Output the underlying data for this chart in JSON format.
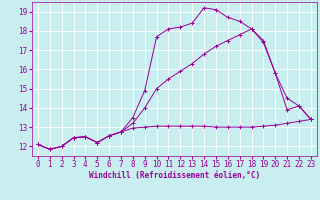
{
  "xlabel": "Windchill (Refroidissement éolien,°C)",
  "bg_color": "#c8eef0",
  "grid_color": "#ffffff",
  "line_color": "#990099",
  "xlim": [
    -0.5,
    23.5
  ],
  "ylim": [
    11.5,
    19.5
  ],
  "xticks": [
    0,
    1,
    2,
    3,
    4,
    5,
    6,
    7,
    8,
    9,
    10,
    11,
    12,
    13,
    14,
    15,
    16,
    17,
    18,
    19,
    20,
    21,
    22,
    23
  ],
  "yticks": [
    12,
    13,
    14,
    15,
    16,
    17,
    18,
    19
  ],
  "line1_x": [
    0,
    1,
    2,
    3,
    4,
    5,
    6,
    7,
    8,
    9,
    10,
    11,
    12,
    13,
    14,
    15,
    16,
    17,
    18,
    19,
    20,
    21,
    22,
    23
  ],
  "line1_y": [
    12.1,
    11.85,
    12.0,
    12.45,
    12.5,
    12.2,
    12.55,
    12.75,
    12.95,
    13.0,
    13.05,
    13.05,
    13.05,
    13.05,
    13.05,
    13.0,
    13.0,
    13.0,
    13.0,
    13.05,
    13.1,
    13.2,
    13.3,
    13.4
  ],
  "line2_x": [
    0,
    1,
    2,
    3,
    4,
    5,
    6,
    7,
    8,
    9,
    10,
    11,
    12,
    13,
    14,
    15,
    16,
    17,
    18,
    19,
    20,
    21,
    22,
    23
  ],
  "line2_y": [
    12.1,
    11.85,
    12.0,
    12.45,
    12.5,
    12.2,
    12.55,
    12.75,
    13.5,
    14.9,
    17.7,
    18.1,
    18.2,
    18.4,
    19.2,
    19.1,
    18.7,
    18.5,
    18.1,
    17.5,
    15.8,
    13.9,
    14.1,
    13.4
  ],
  "line3_x": [
    0,
    1,
    2,
    3,
    4,
    5,
    6,
    7,
    8,
    9,
    10,
    11,
    12,
    13,
    14,
    15,
    16,
    17,
    18,
    19,
    20,
    21,
    22,
    23
  ],
  "line3_y": [
    12.1,
    11.85,
    12.0,
    12.45,
    12.5,
    12.2,
    12.55,
    12.75,
    13.2,
    14.0,
    15.0,
    15.5,
    15.9,
    16.3,
    16.8,
    17.2,
    17.5,
    17.8,
    18.1,
    17.4,
    15.8,
    14.5,
    14.1,
    13.4
  ],
  "tick_fontsize": 5.5,
  "label_fontsize": 5.5
}
